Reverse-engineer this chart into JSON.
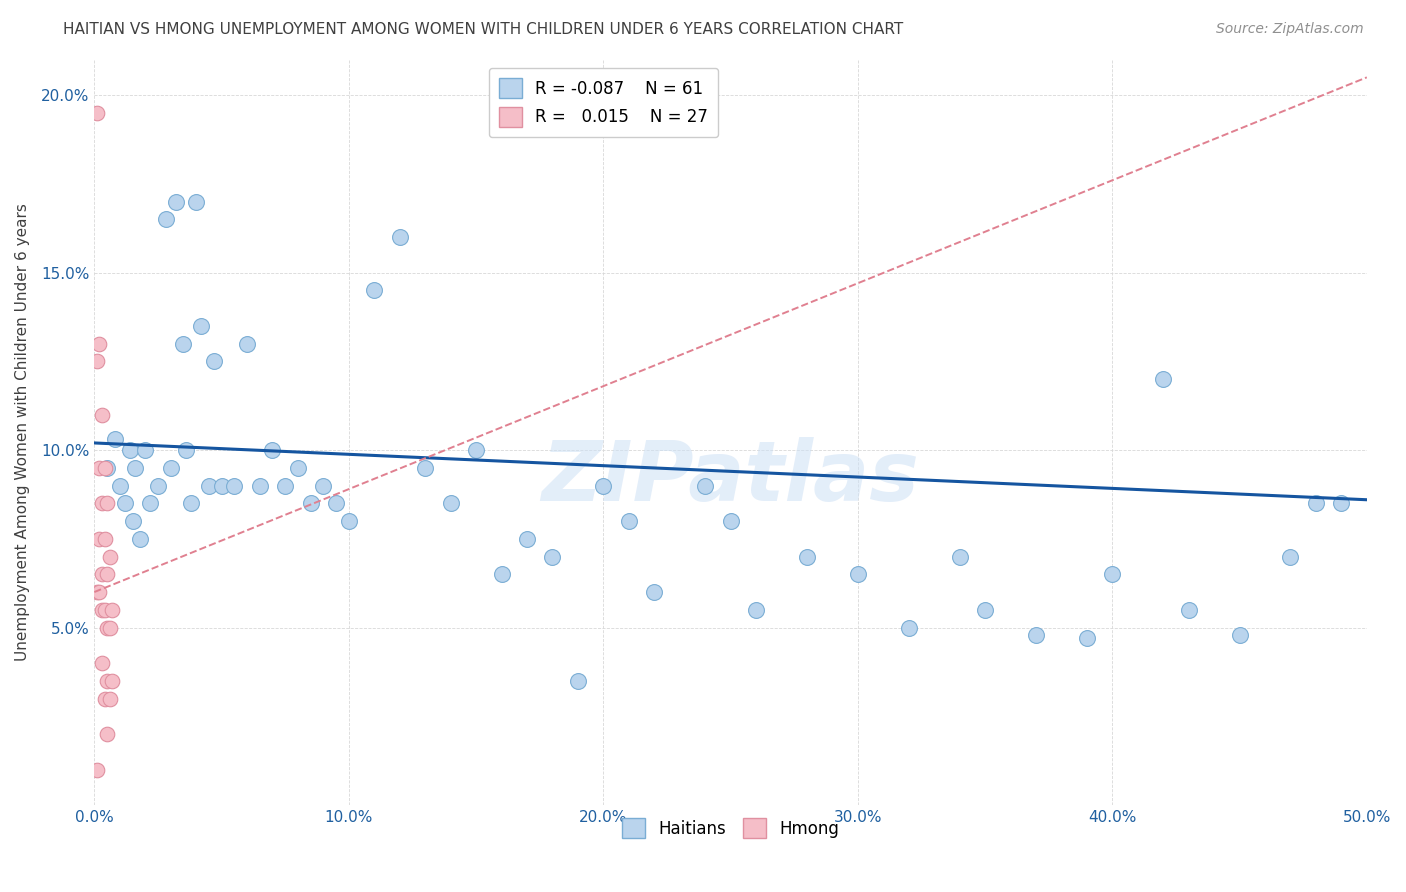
{
  "title": "HAITIAN VS HMONG UNEMPLOYMENT AMONG WOMEN WITH CHILDREN UNDER 6 YEARS CORRELATION CHART",
  "source": "Source: ZipAtlas.com",
  "ylabel": "Unemployment Among Women with Children Under 6 years",
  "watermark": "ZIPatlas",
  "xlim": [
    0,
    0.5
  ],
  "ylim": [
    0,
    0.21
  ],
  "xticks": [
    0.0,
    0.1,
    0.2,
    0.3,
    0.4,
    0.5
  ],
  "yticks": [
    0.0,
    0.05,
    0.1,
    0.15,
    0.2
  ],
  "xticklabels": [
    "0.0%",
    "10.0%",
    "20.0%",
    "30.0%",
    "40.0%",
    "50.0%"
  ],
  "yticklabels": [
    "",
    "5.0%",
    "10.0%",
    "15.0%",
    "20.0%"
  ],
  "haitians_R": -0.087,
  "haitians_N": 61,
  "hmong_R": 0.015,
  "hmong_N": 27,
  "haitian_color": "#bad4ed",
  "hmong_color": "#f5bec8",
  "haitian_edge_color": "#7aadd4",
  "hmong_edge_color": "#e090a0",
  "haitian_line_color": "#1555a0",
  "hmong_line_color": "#e08090",
  "title_color": "#404040",
  "source_color": "#909090",
  "tick_color": "#2060a0",
  "grid_color": "#d8d8d8",
  "haitians_x": [
    0.005,
    0.008,
    0.01,
    0.012,
    0.014,
    0.015,
    0.016,
    0.018,
    0.02,
    0.022,
    0.025,
    0.028,
    0.03,
    0.032,
    0.035,
    0.036,
    0.038,
    0.04,
    0.042,
    0.045,
    0.047,
    0.05,
    0.055,
    0.06,
    0.065,
    0.07,
    0.075,
    0.08,
    0.085,
    0.09,
    0.095,
    0.1,
    0.11,
    0.12,
    0.13,
    0.14,
    0.15,
    0.16,
    0.17,
    0.18,
    0.19,
    0.2,
    0.21,
    0.22,
    0.24,
    0.25,
    0.26,
    0.28,
    0.3,
    0.32,
    0.34,
    0.35,
    0.37,
    0.39,
    0.4,
    0.42,
    0.43,
    0.45,
    0.47,
    0.48,
    0.49
  ],
  "haitians_y": [
    0.095,
    0.103,
    0.09,
    0.085,
    0.1,
    0.08,
    0.095,
    0.075,
    0.1,
    0.085,
    0.09,
    0.165,
    0.095,
    0.17,
    0.13,
    0.1,
    0.085,
    0.17,
    0.135,
    0.09,
    0.125,
    0.09,
    0.09,
    0.13,
    0.09,
    0.1,
    0.09,
    0.095,
    0.085,
    0.09,
    0.085,
    0.08,
    0.145,
    0.16,
    0.095,
    0.085,
    0.1,
    0.065,
    0.075,
    0.07,
    0.035,
    0.09,
    0.08,
    0.06,
    0.09,
    0.08,
    0.055,
    0.07,
    0.065,
    0.05,
    0.07,
    0.055,
    0.048,
    0.047,
    0.065,
    0.12,
    0.055,
    0.048,
    0.07,
    0.085,
    0.085
  ],
  "hmong_x": [
    0.001,
    0.001,
    0.001,
    0.002,
    0.002,
    0.002,
    0.002,
    0.003,
    0.003,
    0.003,
    0.003,
    0.003,
    0.004,
    0.004,
    0.004,
    0.004,
    0.005,
    0.005,
    0.005,
    0.005,
    0.005,
    0.006,
    0.006,
    0.006,
    0.007,
    0.007,
    0.001
  ],
  "hmong_y": [
    0.195,
    0.125,
    0.06,
    0.13,
    0.095,
    0.075,
    0.06,
    0.11,
    0.085,
    0.065,
    0.055,
    0.04,
    0.095,
    0.075,
    0.055,
    0.03,
    0.085,
    0.065,
    0.05,
    0.035,
    0.02,
    0.07,
    0.05,
    0.03,
    0.055,
    0.035,
    0.01
  ],
  "haitian_trend_x": [
    0.0,
    0.5
  ],
  "haitian_trend_y": [
    0.102,
    0.086
  ],
  "hmong_trend_x": [
    0.0,
    0.5
  ],
  "hmong_trend_y": [
    0.06,
    0.205
  ]
}
